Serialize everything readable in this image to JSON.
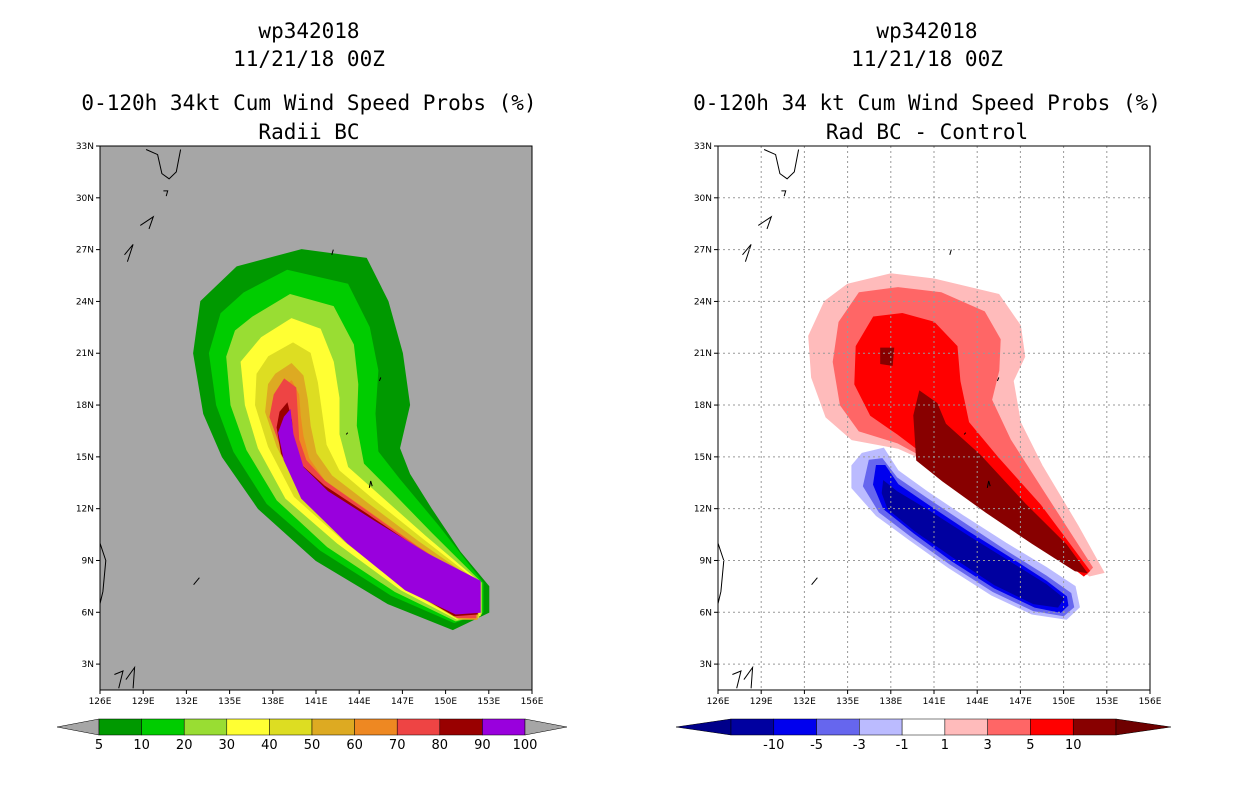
{
  "chart_data": [
    {
      "type": "filled-contour-map",
      "storm_id": "wp342018",
      "date": "11/21/18 00Z",
      "title": "0-120h 34kt Cum Wind Speed Probs (%)",
      "subtitle": "Radii BC",
      "x_ticks": [
        "126E",
        "129E",
        "132E",
        "135E",
        "138E",
        "141E",
        "144E",
        "147E",
        "150E",
        "153E",
        "156E"
      ],
      "y_ticks": [
        "33N",
        "30N",
        "27N",
        "24N",
        "21N",
        "18N",
        "15N",
        "12N",
        "9N",
        "6N",
        "3N"
      ],
      "lon_range": [
        126,
        156
      ],
      "lat_range": [
        1.5,
        33
      ],
      "grid": false,
      "background_color": "#a6a6a6",
      "levels": [
        "5",
        "10",
        "20",
        "30",
        "40",
        "50",
        "60",
        "70",
        "80",
        "90",
        "100"
      ],
      "colors": [
        "#009900",
        "#00cc00",
        "#99dd33",
        "#ffff33",
        "#dddd22",
        "#ddaa22",
        "#ee8822",
        "#ee4444",
        "#990000",
        "#9900dd"
      ],
      "end_arrow_colors": [
        "#a6a6a6",
        "#a6a6a6"
      ]
    },
    {
      "type": "filled-contour-map",
      "storm_id": "wp342018",
      "date": "11/21/18 00Z",
      "title": "0-120h 34 kt Cum Wind Speed Probs (%)",
      "subtitle": "Rad BC - Control",
      "x_ticks": [
        "126E",
        "129E",
        "132E",
        "135E",
        "138E",
        "141E",
        "144E",
        "147E",
        "150E",
        "153E",
        "156E"
      ],
      "y_ticks": [
        "33N",
        "30N",
        "27N",
        "24N",
        "21N",
        "18N",
        "15N",
        "12N",
        "9N",
        "6N",
        "3N"
      ],
      "lon_range": [
        126,
        156
      ],
      "lat_range": [
        1.5,
        33
      ],
      "grid": true,
      "background_color": "#ffffff",
      "levels": [
        "-10",
        "-5",
        "-3",
        "-1",
        "1",
        "3",
        "5",
        "10"
      ],
      "colors": [
        "#0000a0",
        "#0000ee",
        "#6666ee",
        "#bbbbff",
        "#ffffff",
        "#ffbbbb",
        "#ff6666",
        "#ff0000",
        "#880000"
      ],
      "end_arrow_colors": [
        "#00008a",
        "#6e0000"
      ]
    }
  ]
}
